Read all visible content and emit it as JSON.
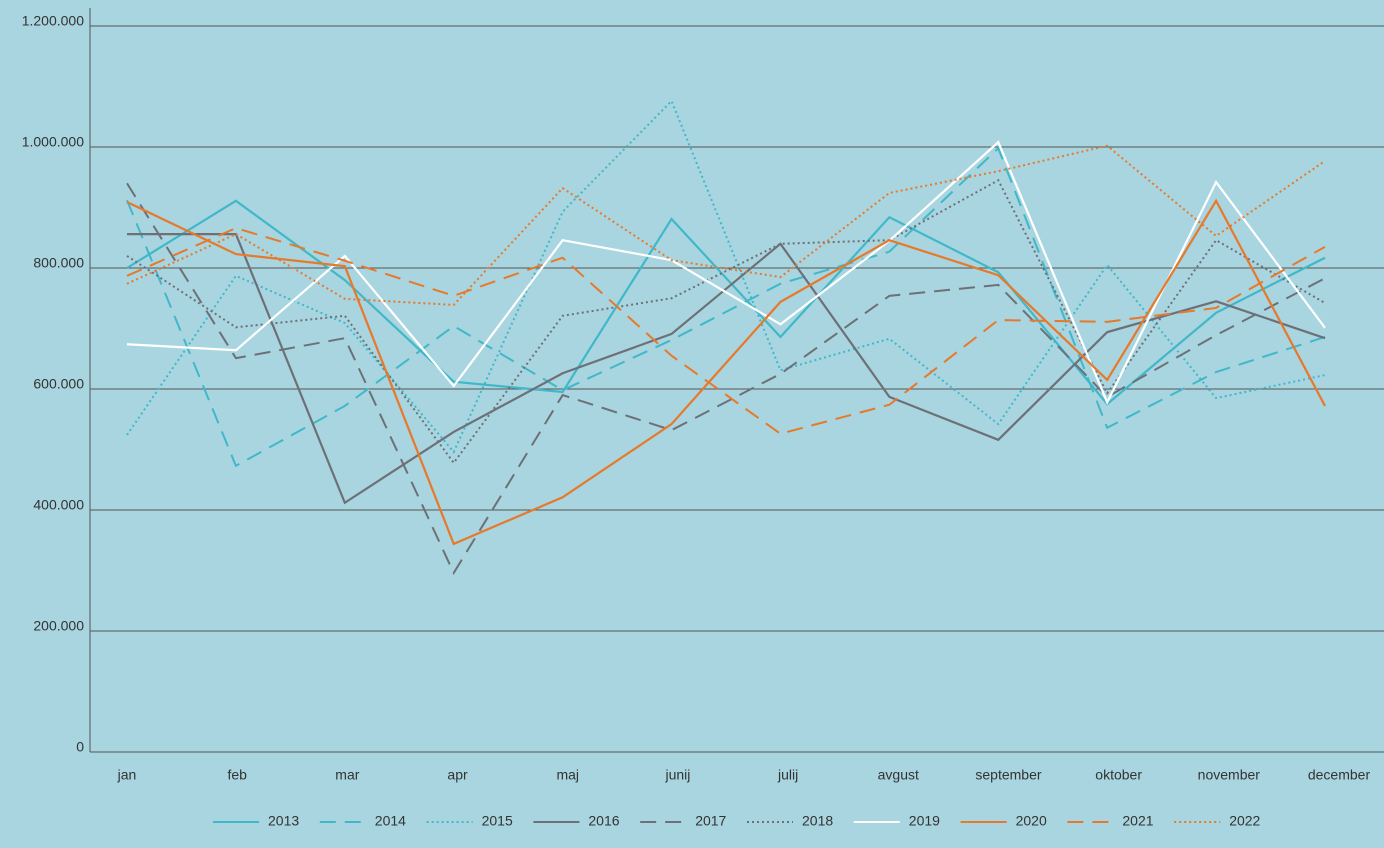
{
  "chart_data": {
    "type": "line",
    "categories": [
      "jan",
      "feb",
      "mar",
      "apr",
      "maj",
      "junij",
      "julij",
      "avgust",
      "september",
      "oktober",
      "november",
      "december"
    ],
    "ylim": [
      0,
      1200000
    ],
    "yticks": [
      0,
      {
        "value": 200000,
        "label": "200.000"
      },
      {
        "value": 400000,
        "label": "400.000"
      },
      {
        "value": 600000,
        "label": "600.000"
      },
      {
        "value": 800000,
        "label": "800.000"
      },
      {
        "value": 1000000,
        "label": "1.000.000"
      },
      {
        "value": 1200000,
        "label": "1.200.000"
      }
    ],
    "grid": true,
    "legend": "bottom",
    "series": [
      {
        "name": "2013",
        "color": "#3fb8c9",
        "style": "solid",
        "values": [
          800000,
          911000,
          780000,
          612000,
          595000,
          881000,
          686000,
          884000,
          793000,
          575000,
          726000,
          817000
        ]
      },
      {
        "name": "2014",
        "color": "#3fb8c9",
        "style": "dashed",
        "values": [
          912000,
          473000,
          572000,
          704000,
          598000,
          681000,
          774000,
          827000,
          998000,
          536000,
          628000,
          686000
        ]
      },
      {
        "name": "2015",
        "color": "#3fb8c9",
        "style": "dotted",
        "values": [
          524000,
          787000,
          709000,
          496000,
          893000,
          1076000,
          631000,
          683000,
          542000,
          805000,
          585000,
          623000
        ]
      },
      {
        "name": "2016",
        "color": "#6d7077",
        "style": "solid",
        "values": [
          856000,
          856000,
          412000,
          529000,
          626000,
          691000,
          840000,
          587000,
          516000,
          694000,
          745000,
          684000
        ]
      },
      {
        "name": "2017",
        "color": "#6d7077",
        "style": "dashed",
        "values": [
          940000,
          651000,
          684000,
          296000,
          590000,
          532000,
          625000,
          754000,
          772000,
          587000,
          689000,
          783000
        ]
      },
      {
        "name": "2018",
        "color": "#6d7077",
        "style": "dotted",
        "values": [
          820000,
          702000,
          721000,
          478000,
          721000,
          750000,
          840000,
          846000,
          945000,
          593000,
          846000,
          742000
        ]
      },
      {
        "name": "2019",
        "color": "#ffffff",
        "style": "solid",
        "values": [
          674000,
          664000,
          820000,
          605000,
          846000,
          813000,
          707000,
          845000,
          1008000,
          578000,
          942000,
          701000
        ]
      },
      {
        "name": "2020",
        "color": "#e8782a",
        "style": "solid",
        "values": [
          909000,
          823000,
          803000,
          344000,
          421000,
          542000,
          744000,
          846000,
          788000,
          615000,
          911000,
          572000
        ]
      },
      {
        "name": "2021",
        "color": "#e8782a",
        "style": "dashed",
        "values": [
          787000,
          866000,
          812000,
          754000,
          817000,
          655000,
          526000,
          574000,
          714000,
          711000,
          734000,
          835000
        ]
      },
      {
        "name": "2022",
        "color": "#e8782a",
        "style": "dotted",
        "values": [
          774000,
          856000,
          749000,
          739000,
          932000,
          813000,
          785000,
          924000,
          960000,
          1002000,
          853000,
          977000
        ]
      }
    ]
  }
}
